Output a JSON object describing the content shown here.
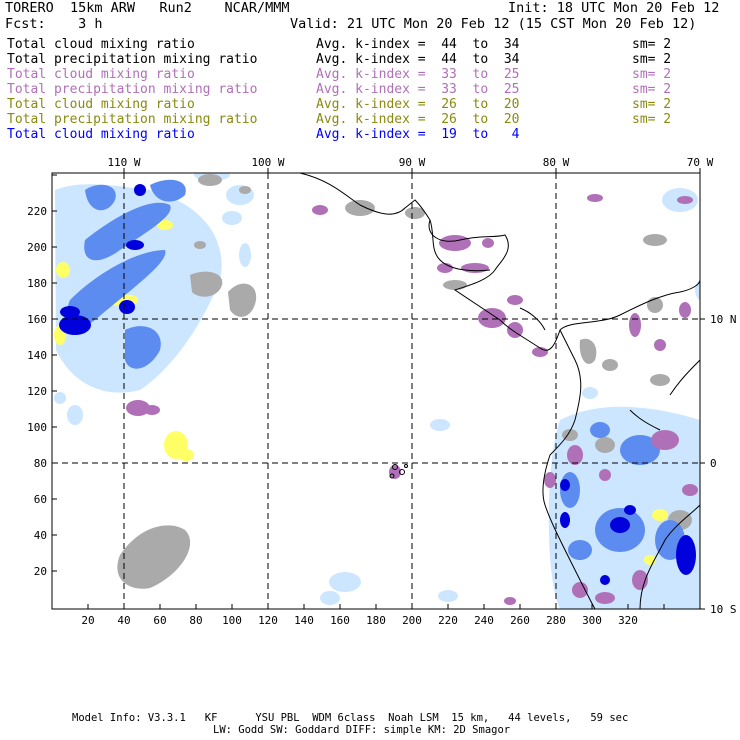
{
  "header": {
    "model_line": "TORERO  15km ARW   Run2    NCAR/MMM",
    "init": "Init: 18 UTC Mon 20 Feb 12",
    "fcst": "Fcst:    3 h",
    "valid": "Valid: 21 UTC Mon 20 Feb 12 (15 CST Mon 20 Feb 12)"
  },
  "legend": [
    {
      "field": "Total cloud mixing ratio",
      "avg": "Avg. k-index =  44  to  34",
      "sm": "sm= 2",
      "color": "#000000"
    },
    {
      "field": "Total precipitation mixing ratio",
      "avg": "Avg. k-index =  44  to  34",
      "sm": "sm= 2",
      "color": "#000000"
    },
    {
      "field": "Total cloud mixing ratio",
      "avg": "Avg. k-index =  33  to  25",
      "sm": "sm= 2",
      "color": "#b070b8"
    },
    {
      "field": "Total precipitation mixing ratio",
      "avg": "Avg. k-index =  33  to  25",
      "sm": "sm= 2",
      "color": "#b070b8"
    },
    {
      "field": "Total cloud mixing ratio",
      "avg": "Avg. k-index =  26  to  20",
      "sm": "sm= 2",
      "color": "#8a8a10"
    },
    {
      "field": "Total precipitation mixing ratio",
      "avg": "Avg. k-index =  26  to  20",
      "sm": "sm= 2",
      "color": "#8a8a10"
    },
    {
      "field": "Total cloud mixing ratio",
      "avg": "Avg. k-index =  19  to   4",
      "sm": "",
      "color": "#0000ff"
    }
  ],
  "map": {
    "top_lon_labels": [
      "110 W",
      "100 W",
      "90 W",
      "80 W",
      "70 W"
    ],
    "right_lat_labels": [
      "10 N",
      "0",
      "10 S"
    ],
    "x_ticks": [
      "20",
      "40",
      "60",
      "80",
      "100",
      "120",
      "140",
      "160",
      "180",
      "200",
      "220",
      "240",
      "260",
      "280",
      "300",
      "320"
    ],
    "y_ticks": [
      "20",
      "40",
      "60",
      "80",
      "100",
      "120",
      "140",
      "160",
      "180",
      "200",
      "220"
    ],
    "colors": {
      "gray": "#aaaaaa",
      "purple": "#b070b8",
      "yellow": "#ffff66",
      "light_blue": "#cce6ff",
      "blue": "#3366ff",
      "dark_blue": "#0000dd"
    }
  },
  "footer": {
    "line1": "Model Info: V3.3.1   KF      YSU PBL  WDM 6class  Noah LSM  15 km,   44 levels,   59 sec",
    "line2": "LW: Godd SW: Goddard DIFF: simple KM: 2D Smagor"
  }
}
